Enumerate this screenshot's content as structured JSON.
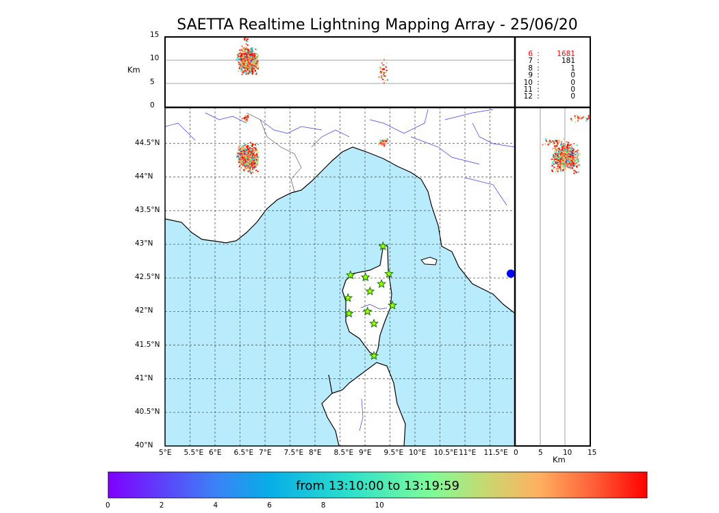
{
  "title": "SAETTA Realtime Lightning Mapping Array - 25/06/20",
  "colorbar_label": "from 13:10:00 to 13:19:59",
  "legend": [
    {
      "k": "6",
      "v": "1681",
      "highlight": true
    },
    {
      "k": "7",
      "v": "181"
    },
    {
      "k": "8",
      "v": "1"
    },
    {
      "k": "9",
      "v": "0"
    },
    {
      "k": "10",
      "v": "0"
    },
    {
      "k": "11",
      "v": "0"
    },
    {
      "k": "12",
      "v": "0"
    }
  ],
  "colors": {
    "sea": "#b8ecfc",
    "land": "#ffffff",
    "highlight": "#ff0000",
    "star": "#9cff00",
    "star_edge": "#137000"
  },
  "chart_data": {
    "type": "scatter",
    "title": "SAETTA Realtime Lightning Mapping Array - 25/06/20",
    "map": {
      "xlim": [
        5,
        12
      ],
      "ylim": [
        40,
        45
      ],
      "xticks": [
        "5°E",
        "5.5°E",
        "6°E",
        "6.5°E",
        "7°E",
        "7.5°E",
        "8°E",
        "8.5°E",
        "9°E",
        "9.5°E",
        "10°E",
        "10.5°E",
        "11°E",
        "11.5°E"
      ],
      "yticks": [
        "40°N",
        "40.5°N",
        "41°N",
        "41.5°N",
        "42°N",
        "42.5°N",
        "43°N",
        "43.5°N",
        "44°N",
        "44.5°N"
      ],
      "grid": true
    },
    "altitude_panel": {
      "ylabel": "Km",
      "ylim": [
        0,
        15
      ],
      "yticks": [
        "0",
        "5",
        "10",
        "15"
      ]
    },
    "latitude_panel": {
      "xlabel": "Km",
      "xlim": [
        0,
        15
      ],
      "xticks": [
        "0",
        "5",
        "10",
        "15"
      ]
    },
    "stations": [
      {
        "lon": 9.36,
        "lat": 42.97
      },
      {
        "lon": 8.71,
        "lat": 42.54
      },
      {
        "lon": 9.01,
        "lat": 42.51
      },
      {
        "lon": 9.48,
        "lat": 42.56
      },
      {
        "lon": 9.33,
        "lat": 42.41
      },
      {
        "lon": 8.66,
        "lat": 42.2
      },
      {
        "lon": 9.1,
        "lat": 42.3
      },
      {
        "lon": 9.55,
        "lat": 42.09
      },
      {
        "lon": 8.68,
        "lat": 41.97
      },
      {
        "lon": 9.05,
        "lat": 42.0
      },
      {
        "lon": 9.18,
        "lat": 41.82
      },
      {
        "lon": 9.18,
        "lat": 41.34
      }
    ],
    "clusters": [
      {
        "lon": 6.65,
        "lat": 44.3,
        "dlon": 0.12,
        "dlat": 0.12,
        "alt": 10,
        "dalt": 1.6,
        "count": 900
      },
      {
        "lon": 6.6,
        "lat": 44.88,
        "dlon": 0.05,
        "dlat": 0.03,
        "alt": 13,
        "dalt": 1.5,
        "count": 25
      },
      {
        "lon": 9.35,
        "lat": 44.53,
        "dlon": 0.05,
        "dlat": 0.04,
        "alt": 7.5,
        "dalt": 1.5,
        "count": 40
      }
    ],
    "colorbar": {
      "range": [
        0,
        10
      ],
      "ticks": [
        "0",
        "2",
        "4",
        "6",
        "8",
        "10"
      ]
    }
  }
}
